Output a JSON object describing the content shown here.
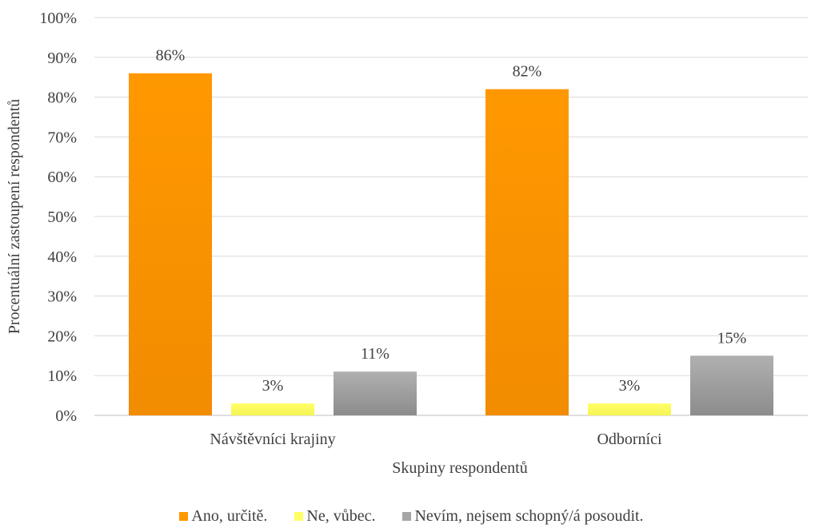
{
  "chart_data": {
    "type": "bar",
    "title": "",
    "xlabel": "Skupiny respondentů",
    "ylabel": "Procentuální zastoupení respondentů",
    "ylim": [
      0,
      100
    ],
    "y_ticks": [
      "0%",
      "10%",
      "20%",
      "30%",
      "40%",
      "50%",
      "60%",
      "70%",
      "80%",
      "90%",
      "100%"
    ],
    "categories": [
      "Návštěvníci krajiny",
      "Odborníci"
    ],
    "series": [
      {
        "name": "Ano, určitě.",
        "color": "#ff9800",
        "values": [
          86,
          82
        ],
        "labels": [
          "86%",
          "82%"
        ]
      },
      {
        "name": "Ne, vůbec.",
        "color": "#ffff66",
        "values": [
          3,
          3
        ],
        "labels": [
          "3%",
          "3%"
        ]
      },
      {
        "name": "Nevím, nejsem schopný/á posoudit.",
        "color": "#a6a6a6",
        "values": [
          11,
          15
        ],
        "labels": [
          "11%",
          "15%"
        ]
      }
    ],
    "grid": true,
    "legend_position": "bottom"
  }
}
